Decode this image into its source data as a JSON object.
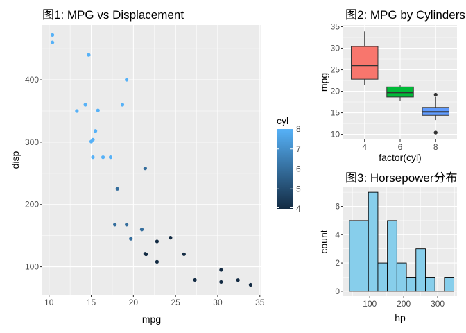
{
  "chart_data": [
    {
      "type": "scatter",
      "title": "图1: MPG vs Displacement",
      "xlabel": "mpg",
      "ylabel": "disp",
      "xlim": [
        9.2,
        35.1
      ],
      "ylim": [
        55,
        488
      ],
      "x_ticks": [
        10,
        15,
        20,
        25,
        30,
        35
      ],
      "y_ticks": [
        100,
        200,
        300,
        400
      ],
      "legend": {
        "title": "cyl",
        "position": "right",
        "range": [
          4,
          8
        ],
        "ticks": [
          4,
          5,
          6,
          7,
          8
        ],
        "colors": {
          "low": "#132B43",
          "high": "#56B1F7"
        }
      },
      "points": [
        {
          "mpg": 21.0,
          "disp": 160.0,
          "cyl": 6
        },
        {
          "mpg": 21.0,
          "disp": 160.0,
          "cyl": 6
        },
        {
          "mpg": 22.8,
          "disp": 108.0,
          "cyl": 4
        },
        {
          "mpg": 21.4,
          "disp": 258.0,
          "cyl": 6
        },
        {
          "mpg": 18.7,
          "disp": 360.0,
          "cyl": 8
        },
        {
          "mpg": 18.1,
          "disp": 225.0,
          "cyl": 6
        },
        {
          "mpg": 14.3,
          "disp": 360.0,
          "cyl": 8
        },
        {
          "mpg": 24.4,
          "disp": 146.7,
          "cyl": 4
        },
        {
          "mpg": 22.8,
          "disp": 140.8,
          "cyl": 4
        },
        {
          "mpg": 19.2,
          "disp": 167.6,
          "cyl": 6
        },
        {
          "mpg": 17.8,
          "disp": 167.6,
          "cyl": 6
        },
        {
          "mpg": 16.4,
          "disp": 275.8,
          "cyl": 8
        },
        {
          "mpg": 17.3,
          "disp": 275.8,
          "cyl": 8
        },
        {
          "mpg": 15.2,
          "disp": 275.8,
          "cyl": 8
        },
        {
          "mpg": 10.4,
          "disp": 472.0,
          "cyl": 8
        },
        {
          "mpg": 10.4,
          "disp": 460.0,
          "cyl": 8
        },
        {
          "mpg": 14.7,
          "disp": 440.0,
          "cyl": 8
        },
        {
          "mpg": 32.4,
          "disp": 78.7,
          "cyl": 4
        },
        {
          "mpg": 30.4,
          "disp": 75.7,
          "cyl": 4
        },
        {
          "mpg": 33.9,
          "disp": 71.1,
          "cyl": 4
        },
        {
          "mpg": 21.5,
          "disp": 120.1,
          "cyl": 4
        },
        {
          "mpg": 15.5,
          "disp": 318.0,
          "cyl": 8
        },
        {
          "mpg": 15.2,
          "disp": 304.0,
          "cyl": 8
        },
        {
          "mpg": 13.3,
          "disp": 350.0,
          "cyl": 8
        },
        {
          "mpg": 19.2,
          "disp": 400.0,
          "cyl": 8
        },
        {
          "mpg": 27.3,
          "disp": 79.0,
          "cyl": 4
        },
        {
          "mpg": 26.0,
          "disp": 120.3,
          "cyl": 4
        },
        {
          "mpg": 30.4,
          "disp": 95.1,
          "cyl": 4
        },
        {
          "mpg": 15.8,
          "disp": 351.0,
          "cyl": 8
        },
        {
          "mpg": 19.7,
          "disp": 145.0,
          "cyl": 6
        },
        {
          "mpg": 15.0,
          "disp": 301.0,
          "cyl": 8
        },
        {
          "mpg": 21.4,
          "disp": 121.0,
          "cyl": 4
        }
      ]
    },
    {
      "type": "box",
      "title": "图2: MPG by Cylinders",
      "xlabel": "factor(cyl)",
      "ylabel": "mpg",
      "ylim": [
        8.8,
        35.4
      ],
      "y_ticks": [
        10,
        15,
        20,
        25,
        30,
        35
      ],
      "categories": [
        "4",
        "6",
        "8"
      ],
      "boxes": [
        {
          "cyl": "4",
          "min": 21.4,
          "q1": 22.8,
          "median": 26.0,
          "q3": 30.4,
          "max": 33.9,
          "outliers": [],
          "fill": "#F8766D"
        },
        {
          "cyl": "6",
          "min": 17.8,
          "q1": 18.65,
          "median": 19.7,
          "q3": 21.0,
          "max": 21.4,
          "outliers": [],
          "fill": "#00BA38"
        },
        {
          "cyl": "8",
          "min": 13.3,
          "q1": 14.4,
          "median": 15.2,
          "q3": 16.25,
          "max": 18.7,
          "outliers": [
            10.4,
            10.4,
            19.2
          ],
          "fill": "#619CFF"
        }
      ]
    },
    {
      "type": "histogram",
      "title": "图3: Horsepower分布",
      "xlabel": "hp",
      "ylabel": "count",
      "xlim": [
        22,
        357
      ],
      "ylim": [
        -0.35,
        7.35
      ],
      "x_ticks": [
        100,
        200,
        300
      ],
      "y_ticks": [
        0,
        2,
        4,
        6
      ],
      "fill": "#87CEEB",
      "bins": [
        {
          "from": 40,
          "to": 68,
          "count": 5
        },
        {
          "from": 68,
          "to": 96,
          "count": 5
        },
        {
          "from": 96,
          "to": 124,
          "count": 7
        },
        {
          "from": 124,
          "to": 152,
          "count": 2
        },
        {
          "from": 152,
          "to": 180,
          "count": 5
        },
        {
          "from": 180,
          "to": 208,
          "count": 2
        },
        {
          "from": 208,
          "to": 236,
          "count": 1
        },
        {
          "from": 236,
          "to": 264,
          "count": 3
        },
        {
          "from": 264,
          "to": 292,
          "count": 1
        },
        {
          "from": 292,
          "to": 320,
          "count": 0
        },
        {
          "from": 320,
          "to": 348,
          "count": 1
        }
      ]
    }
  ]
}
